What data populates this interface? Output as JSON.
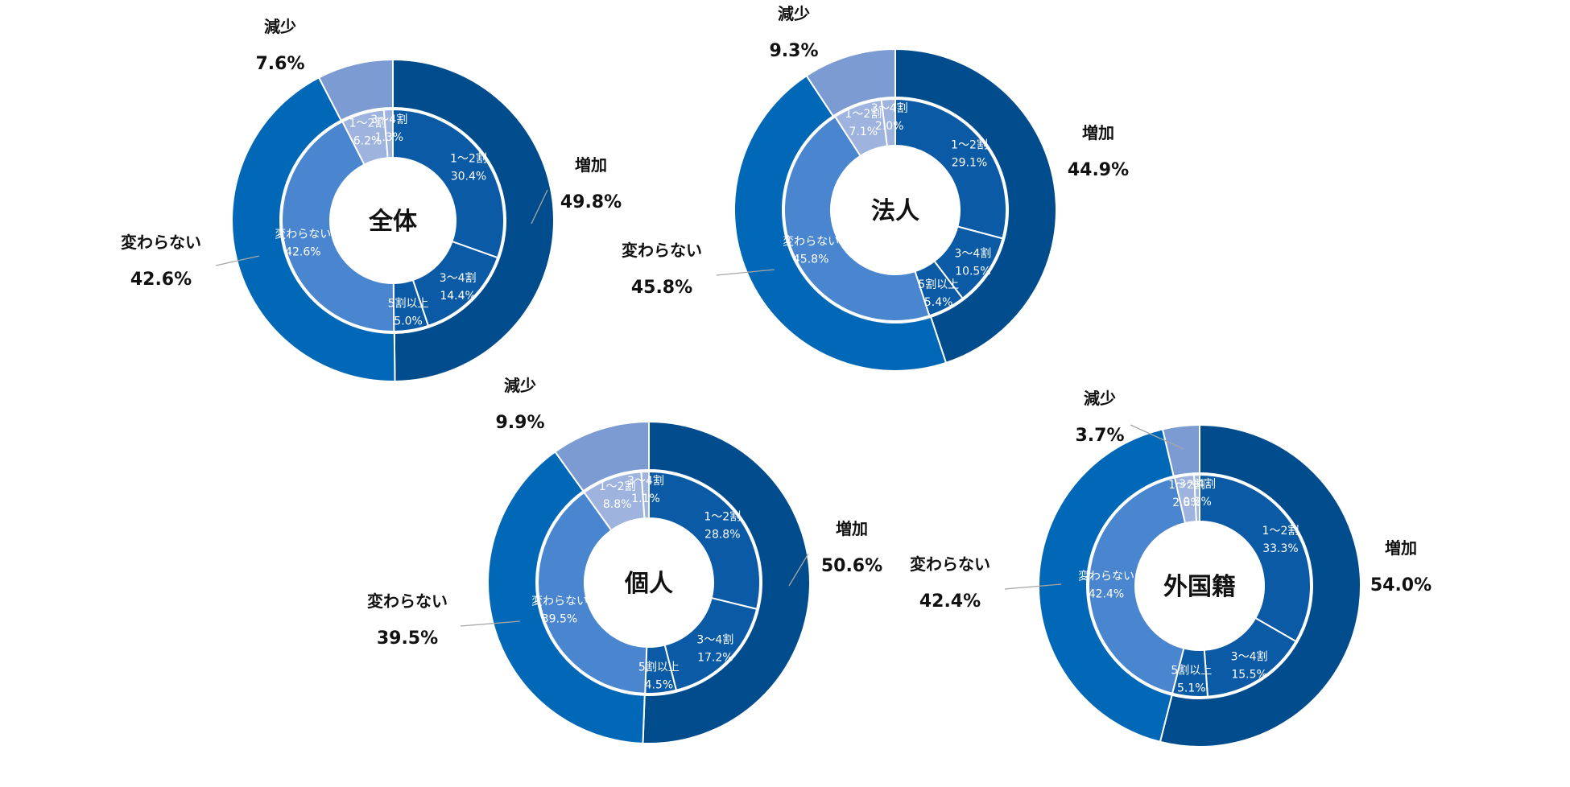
{
  "chart_data": [
    {
      "type": "pie",
      "title": "全体",
      "outer": [
        {
          "label": "増加",
          "value": 49.8,
          "display": "49.8%",
          "color": "#004c8c"
        },
        {
          "label": "変わらない",
          "value": 42.6,
          "display": "42.6%",
          "color": "#0068b7"
        },
        {
          "label": "減少",
          "value": 7.6,
          "display": "7.6%",
          "color": "#7b9bd2"
        }
      ],
      "inner": [
        {
          "label": "1～2割",
          "value": 30.4,
          "display": "30.4%",
          "color": "#0b5aa6"
        },
        {
          "label": "3～4割",
          "value": 14.4,
          "display": "14.4%",
          "color": "#0b5aa6"
        },
        {
          "label": "5割以上",
          "value": 5.0,
          "display": "5.0%",
          "color": "#0b5aa6"
        },
        {
          "label": "変わらない",
          "value": 42.6,
          "display": "42.6%",
          "color": "#4a86cf"
        },
        {
          "label": "1～2割",
          "value": 6.2,
          "display": "6.2%",
          "color": "#9eb4de"
        },
        {
          "label": "3～4割",
          "value": 1.3,
          "display": "1.3%",
          "color": "#9eb4de"
        }
      ]
    },
    {
      "type": "pie",
      "title": "法人",
      "outer": [
        {
          "label": "増加",
          "value": 44.9,
          "display": "44.9%",
          "color": "#004c8c"
        },
        {
          "label": "変わらない",
          "value": 45.8,
          "display": "45.8%",
          "color": "#0068b7"
        },
        {
          "label": "減少",
          "value": 9.3,
          "display": "9.3%",
          "color": "#7b9bd2"
        }
      ],
      "inner": [
        {
          "label": "1～2割",
          "value": 29.1,
          "display": "29.1%",
          "color": "#0b5aa6"
        },
        {
          "label": "3～4割",
          "value": 10.5,
          "display": "10.5%",
          "color": "#0b5aa6"
        },
        {
          "label": "5割以上",
          "value": 5.4,
          "display": "5.4%",
          "color": "#0b5aa6"
        },
        {
          "label": "変わらない",
          "value": 45.8,
          "display": "45.8%",
          "color": "#4a86cf"
        },
        {
          "label": "1～2割",
          "value": 7.1,
          "display": "7.1%",
          "color": "#9eb4de"
        },
        {
          "label": "3～4割",
          "value": 2.0,
          "display": "2.0%",
          "color": "#9eb4de"
        }
      ]
    },
    {
      "type": "pie",
      "title": "個人",
      "outer": [
        {
          "label": "増加",
          "value": 50.6,
          "display": "50.6%",
          "color": "#004c8c"
        },
        {
          "label": "変わらない",
          "value": 39.5,
          "display": "39.5%",
          "color": "#0068b7"
        },
        {
          "label": "減少",
          "value": 9.9,
          "display": "9.9%",
          "color": "#7b9bd2"
        }
      ],
      "inner": [
        {
          "label": "1～2割",
          "value": 28.8,
          "display": "28.8%",
          "color": "#0b5aa6"
        },
        {
          "label": "3～4割",
          "value": 17.2,
          "display": "17.2%",
          "color": "#0b5aa6"
        },
        {
          "label": "5割以上",
          "value": 4.5,
          "display": "4.5%",
          "color": "#0b5aa6"
        },
        {
          "label": "変わらない",
          "value": 39.5,
          "display": "39.5%",
          "color": "#4a86cf"
        },
        {
          "label": "1～2割",
          "value": 8.8,
          "display": "8.8%",
          "color": "#9eb4de"
        },
        {
          "label": "3～4割",
          "value": 1.1,
          "display": "1.1%",
          "color": "#9eb4de"
        }
      ]
    },
    {
      "type": "pie",
      "title": "外国籍",
      "outer": [
        {
          "label": "増加",
          "value": 54.0,
          "display": "54.0%",
          "color": "#004c8c"
        },
        {
          "label": "変わらない",
          "value": 42.4,
          "display": "42.4%",
          "color": "#0068b7"
        },
        {
          "label": "減少",
          "value": 3.7,
          "display": "3.7%",
          "color": "#7b9bd2"
        }
      ],
      "inner": [
        {
          "label": "1～2割",
          "value": 33.3,
          "display": "33.3%",
          "color": "#0b5aa6"
        },
        {
          "label": "3～4割",
          "value": 15.5,
          "display": "15.5%",
          "color": "#0b5aa6"
        },
        {
          "label": "5割以上",
          "value": 5.1,
          "display": "5.1%",
          "color": "#0b5aa6"
        },
        {
          "label": "変わらない",
          "value": 42.4,
          "display": "42.4%",
          "color": "#4a86cf"
        },
        {
          "label": "1～2割",
          "value": 2.8,
          "display": "2.8%",
          "color": "#9eb4de"
        },
        {
          "label": "3～4割",
          "value": 0.8,
          "display": "0.8%",
          "color": "#9eb4de"
        }
      ]
    }
  ]
}
